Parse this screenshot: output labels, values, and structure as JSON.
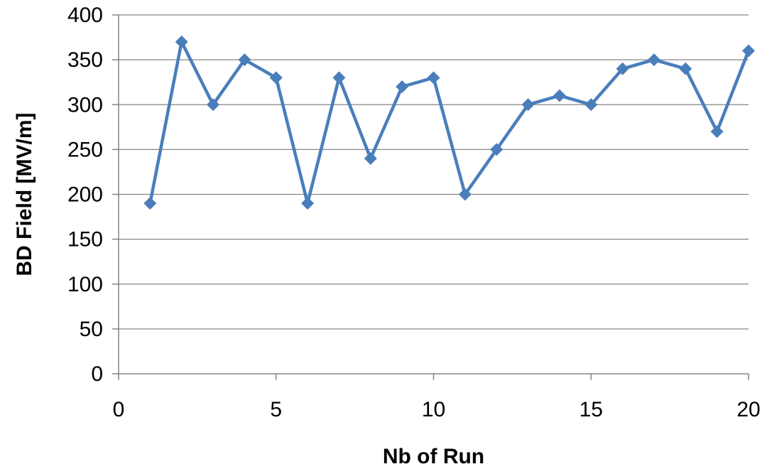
{
  "chart_data": {
    "type": "line",
    "title": "",
    "xlabel": "Nb of Run",
    "ylabel": "BD Field [MV/m]",
    "xlim": [
      0,
      20
    ],
    "ylim": [
      0,
      400
    ],
    "xticks": [
      0,
      5,
      10,
      15,
      20
    ],
    "yticks": [
      0,
      50,
      100,
      150,
      200,
      250,
      300,
      350,
      400
    ],
    "grid": true,
    "legend": "none",
    "series": [
      {
        "color": "#4A7EBB",
        "marker": "diamond",
        "x": [
          1,
          2,
          3,
          4,
          5,
          6,
          7,
          8,
          9,
          10,
          11,
          12,
          13,
          14,
          15,
          16,
          17,
          18,
          19,
          20
        ],
        "y": [
          190,
          370,
          300,
          350,
          330,
          190,
          330,
          240,
          320,
          330,
          200,
          250,
          300,
          310,
          300,
          340,
          350,
          340,
          270,
          360
        ]
      }
    ]
  }
}
